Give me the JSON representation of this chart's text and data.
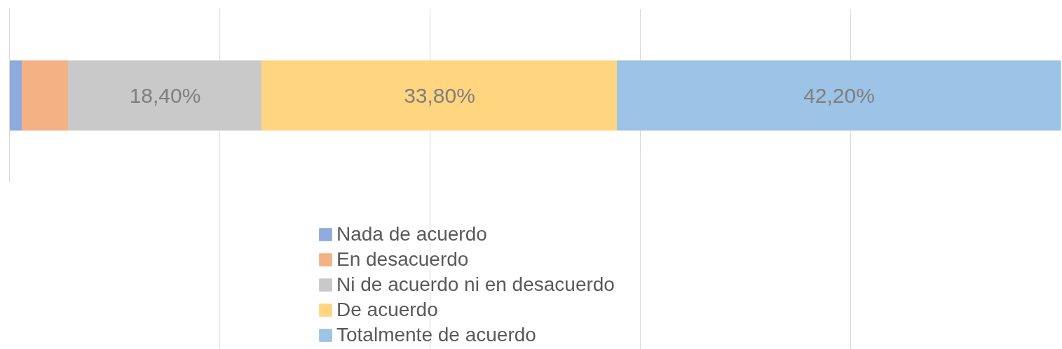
{
  "chart_data": {
    "type": "bar",
    "orientation": "horizontal",
    "stacked": true,
    "categories": [
      null
    ],
    "series": [
      {
        "name": "Nada de acuerdo",
        "color": "#8faadc",
        "values": [
          1.2
        ],
        "value_labels": [
          null
        ]
      },
      {
        "name": "En desacuerdo",
        "color": "#f4b183",
        "values": [
          4.4
        ],
        "value_labels": [
          null
        ]
      },
      {
        "name": "Ni de acuerdo ni en desacuerdo",
        "color": "#c9c9c9",
        "values": [
          18.4
        ],
        "value_labels": [
          "18,40%"
        ]
      },
      {
        "name": "De acuerdo",
        "color": "#ffd580",
        "values": [
          33.8
        ],
        "value_labels": [
          "33,80%"
        ]
      },
      {
        "name": "Totalmente de acuerdo",
        "color": "#9dc3e6",
        "values": [
          42.2
        ],
        "value_labels": [
          "42,20%"
        ]
      }
    ],
    "xlim": [
      0,
      100
    ],
    "xticks": [
      {
        "value": 20,
        "label": null
      },
      {
        "value": 40,
        "label": null
      },
      {
        "value": 60,
        "label": null
      },
      {
        "value": 80,
        "label": null
      }
    ],
    "tick_labels": false,
    "grid": "x",
    "legend": "bottom"
  }
}
